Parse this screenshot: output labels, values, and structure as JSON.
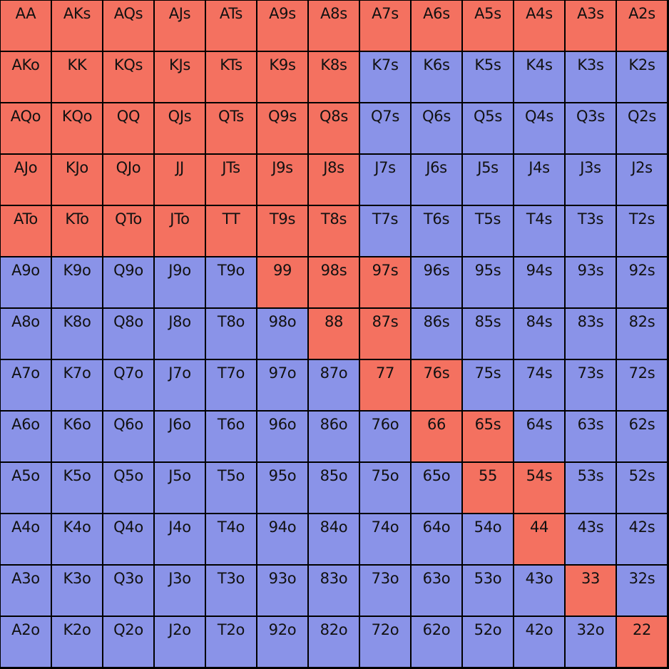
{
  "colors": {
    "raise": "#f47160",
    "fold": "#8a93e8",
    "border": "#000000"
  },
  "ranks": [
    "A",
    "K",
    "Q",
    "J",
    "T",
    "9",
    "8",
    "7",
    "6",
    "5",
    "4",
    "3",
    "2"
  ],
  "range_grid": {
    "hands": [
      [
        "AA",
        "AKs",
        "AQs",
        "AJs",
        "ATs",
        "A9s",
        "A8s",
        "A7s",
        "A6s",
        "A5s",
        "A4s",
        "A3s",
        "A2s"
      ],
      [
        "AKo",
        "KK",
        "KQs",
        "KJs",
        "KTs",
        "K9s",
        "K8s",
        "K7s",
        "K6s",
        "K5s",
        "K4s",
        "K3s",
        "K2s"
      ],
      [
        "AQo",
        "KQo",
        "QQ",
        "QJs",
        "QTs",
        "Q9s",
        "Q8s",
        "Q7s",
        "Q6s",
        "Q5s",
        "Q4s",
        "Q3s",
        "Q2s"
      ],
      [
        "AJo",
        "KJo",
        "QJo",
        "JJ",
        "JTs",
        "J9s",
        "J8s",
        "J7s",
        "J6s",
        "J5s",
        "J4s",
        "J3s",
        "J2s"
      ],
      [
        "ATo",
        "KTo",
        "QTo",
        "JTo",
        "TT",
        "T9s",
        "T8s",
        "T7s",
        "T6s",
        "T5s",
        "T4s",
        "T3s",
        "T2s"
      ],
      [
        "A9o",
        "K9o",
        "Q9o",
        "J9o",
        "T9o",
        "99",
        "98s",
        "97s",
        "96s",
        "95s",
        "94s",
        "93s",
        "92s"
      ],
      [
        "A8o",
        "K8o",
        "Q8o",
        "J8o",
        "T8o",
        "98o",
        "88",
        "87s",
        "86s",
        "85s",
        "84s",
        "83s",
        "82s"
      ],
      [
        "A7o",
        "K7o",
        "Q7o",
        "J7o",
        "T7o",
        "97o",
        "87o",
        "77",
        "76s",
        "75s",
        "74s",
        "73s",
        "72s"
      ],
      [
        "A6o",
        "K6o",
        "Q6o",
        "J6o",
        "T6o",
        "96o",
        "86o",
        "76o",
        "66",
        "65s",
        "64s",
        "63s",
        "62s"
      ],
      [
        "A5o",
        "K5o",
        "Q5o",
        "J5o",
        "T5o",
        "95o",
        "85o",
        "75o",
        "65o",
        "55",
        "54s",
        "53s",
        "52s"
      ],
      [
        "A4o",
        "K4o",
        "Q4o",
        "J4o",
        "T4o",
        "94o",
        "84o",
        "74o",
        "64o",
        "54o",
        "44",
        "43s",
        "42s"
      ],
      [
        "A3o",
        "K3o",
        "Q3o",
        "J3o",
        "T3o",
        "93o",
        "83o",
        "73o",
        "63o",
        "53o",
        "43o",
        "33",
        "32s"
      ],
      [
        "A2o",
        "K2o",
        "Q2o",
        "J2o",
        "T2o",
        "92o",
        "82o",
        "72o",
        "62o",
        "52o",
        "42o",
        "32o",
        "22"
      ]
    ],
    "selected": [
      [
        1,
        1,
        1,
        1,
        1,
        1,
        1,
        1,
        1,
        1,
        1,
        1,
        1
      ],
      [
        1,
        1,
        1,
        1,
        1,
        1,
        1,
        0,
        0,
        0,
        0,
        0,
        0
      ],
      [
        1,
        1,
        1,
        1,
        1,
        1,
        1,
        0,
        0,
        0,
        0,
        0,
        0
      ],
      [
        1,
        1,
        1,
        1,
        1,
        1,
        1,
        0,
        0,
        0,
        0,
        0,
        0
      ],
      [
        1,
        1,
        1,
        1,
        1,
        1,
        1,
        0,
        0,
        0,
        0,
        0,
        0
      ],
      [
        0,
        0,
        0,
        0,
        0,
        1,
        1,
        1,
        0,
        0,
        0,
        0,
        0
      ],
      [
        0,
        0,
        0,
        0,
        0,
        0,
        1,
        1,
        0,
        0,
        0,
        0,
        0
      ],
      [
        0,
        0,
        0,
        0,
        0,
        0,
        0,
        1,
        1,
        0,
        0,
        0,
        0
      ],
      [
        0,
        0,
        0,
        0,
        0,
        0,
        0,
        0,
        1,
        1,
        0,
        0,
        0
      ],
      [
        0,
        0,
        0,
        0,
        0,
        0,
        0,
        0,
        0,
        1,
        1,
        0,
        0
      ],
      [
        0,
        0,
        0,
        0,
        0,
        0,
        0,
        0,
        0,
        0,
        1,
        0,
        0
      ],
      [
        0,
        0,
        0,
        0,
        0,
        0,
        0,
        0,
        0,
        0,
        0,
        1,
        0
      ],
      [
        0,
        0,
        0,
        0,
        0,
        0,
        0,
        0,
        0,
        0,
        0,
        0,
        1
      ]
    ]
  }
}
